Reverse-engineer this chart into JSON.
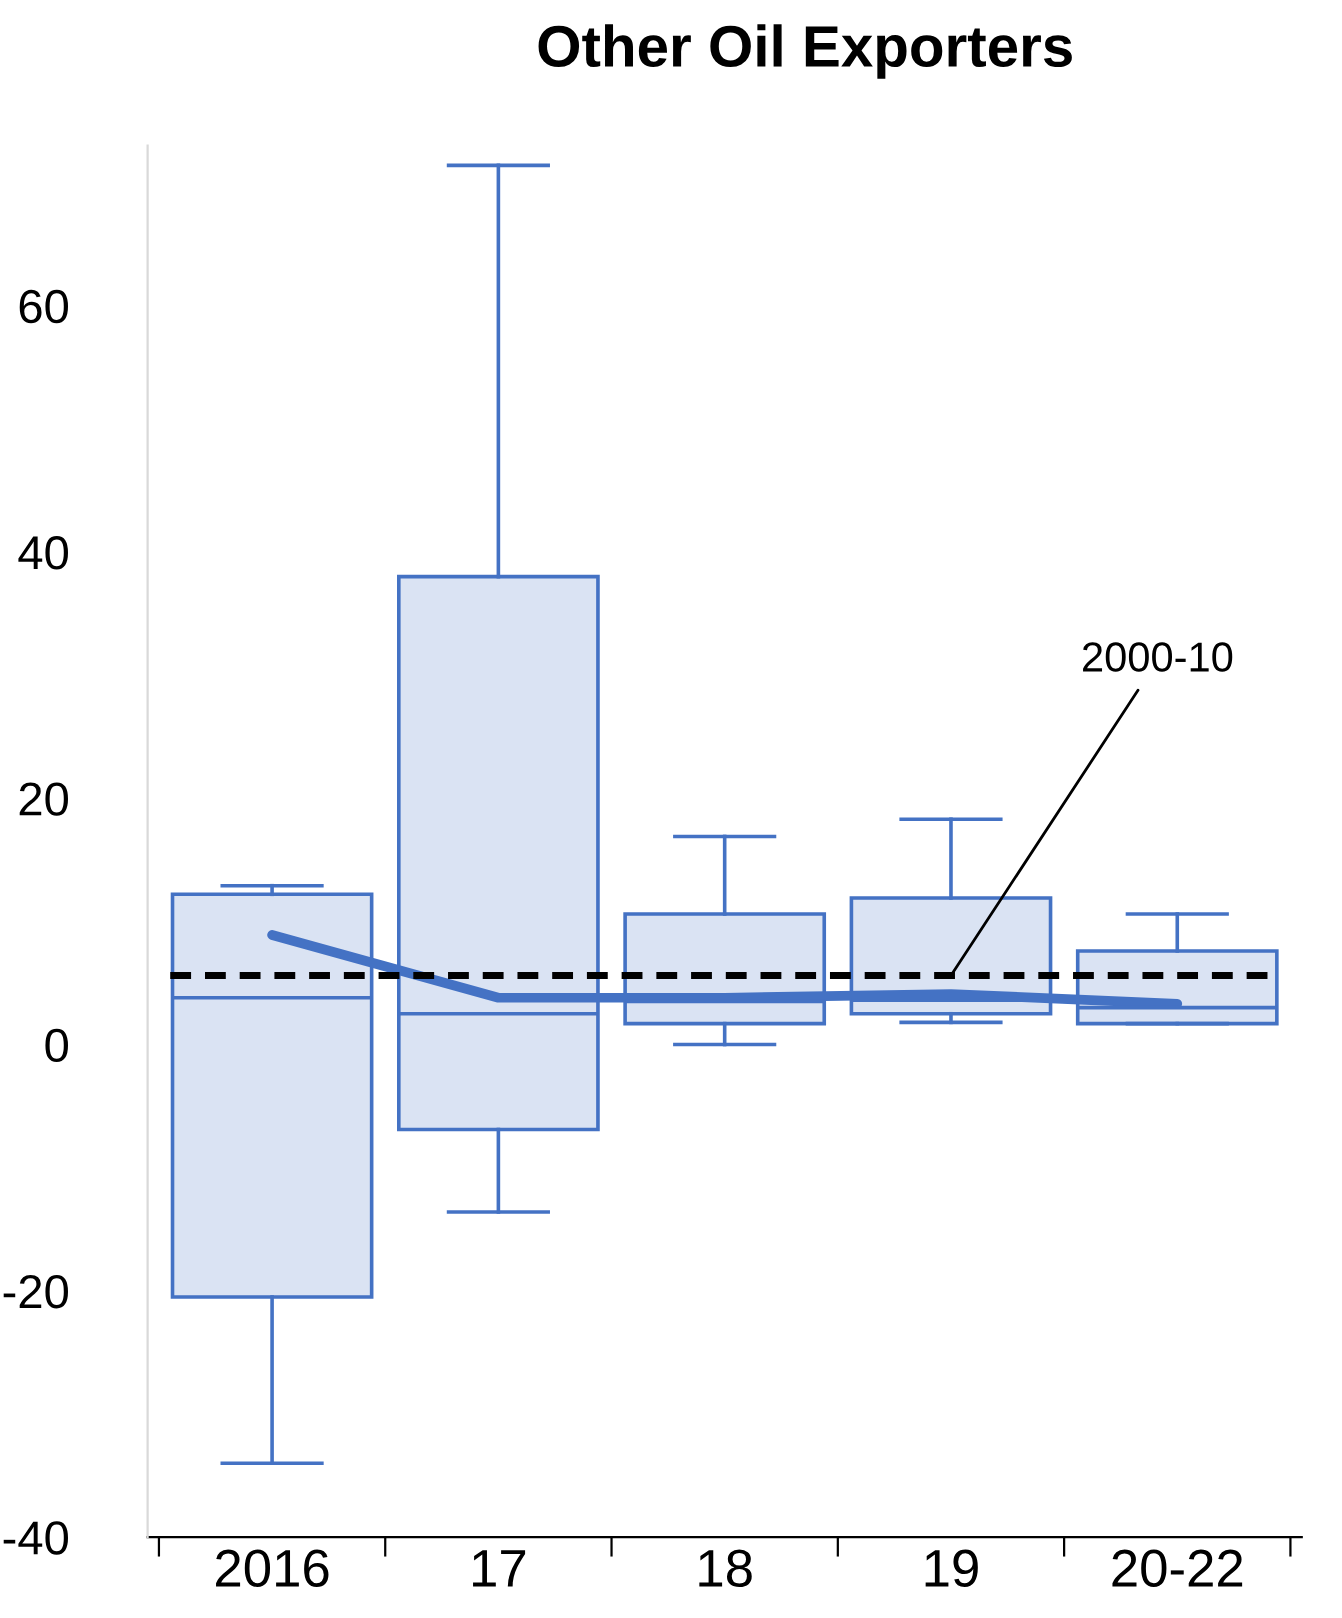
{
  "chart_data": {
    "type": "box",
    "title": "Other Oil Exporters",
    "categories": [
      "2016",
      "17",
      "18",
      "19",
      "20-22"
    ],
    "boxes": [
      {
        "low": -34,
        "q1": -20.5,
        "median": 3.8,
        "q3": 12.2,
        "high": 12.9
      },
      {
        "low": -13.6,
        "q1": -6.9,
        "median": 2.5,
        "q3": 38,
        "high": 71.4
      },
      {
        "low": 0,
        "q1": 1.7,
        "median": 3.5,
        "q3": 10.6,
        "high": 16.9
      },
      {
        "low": 1.8,
        "q1": 2.5,
        "median": 3.6,
        "q3": 11.9,
        "high": 18.3
      },
      {
        "low": 1.7,
        "q1": 1.7,
        "median": 3.0,
        "q3": 7.6,
        "high": 10.6
      }
    ],
    "color": "#4472c4",
    "series": [
      {
        "type": "line",
        "color": "#4472c4",
        "values": [
          8.9,
          3.8,
          3.8,
          4.1,
          3.3
        ]
      }
    ],
    "ref_lines": [
      {
        "axis": "y",
        "value": 5.6,
        "color": "#000000",
        "line_style": "dashed"
      }
    ],
    "annotations": [
      {
        "text": "2000-10",
        "x": "19",
        "y": 5.6
      }
    ],
    "ylim": [
      -40,
      73
    ],
    "yticks": [
      -40,
      -20,
      0,
      20,
      40,
      60
    ],
    "grid": false,
    "legend": false
  }
}
